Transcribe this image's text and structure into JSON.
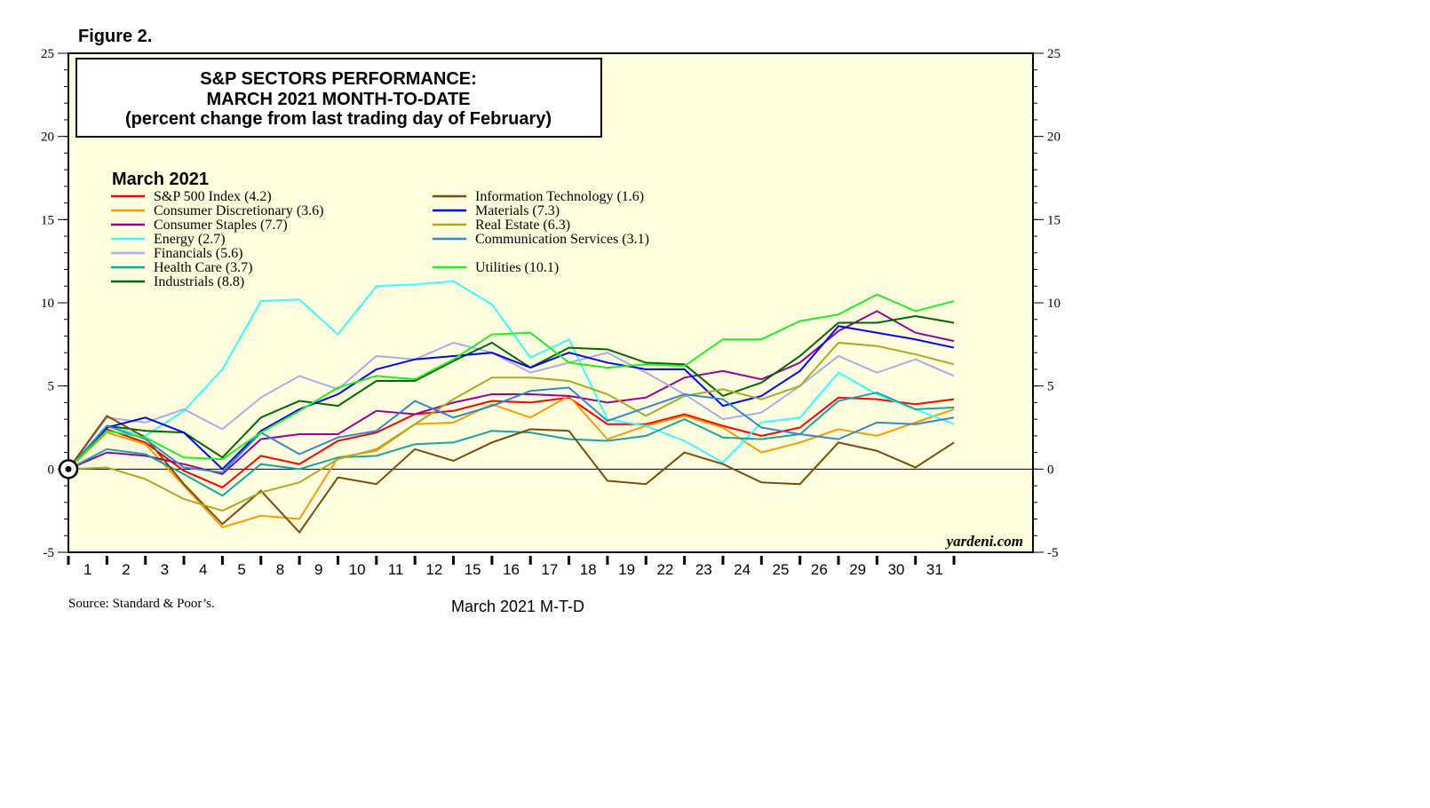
{
  "chart_data": {
    "type": "line",
    "figure_label": "Figure 2.",
    "title": [
      "S&P SECTORS PERFORMANCE:",
      "MARCH 2021 MONTH-TO-DATE",
      "(percent change from last trading day of February)"
    ],
    "legend_title": "March 2021",
    "watermark": "yardeni.com",
    "source": "Source: Standard & Poor’s.",
    "xlabel": "March 2021 M-T-D",
    "categories": [
      null,
      "1",
      "2",
      "3",
      "4",
      "5",
      "8",
      "9",
      "10",
      "11",
      "12",
      "15",
      "16",
      "17",
      "18",
      "19",
      "22",
      "23",
      "24",
      "25",
      "26",
      "29",
      "30",
      "31"
    ],
    "ylim": [
      -5,
      25
    ],
    "yticks": [
      -5,
      0,
      5,
      10,
      15,
      20,
      25
    ],
    "y2lim": [
      -5,
      25
    ],
    "y2ticks": [
      -5,
      0,
      5,
      10,
      15,
      20,
      25
    ],
    "series": [
      {
        "name": "S&P 500 Index (4.2)",
        "color": "#ff0000",
        "values": [
          0,
          2.4,
          1.6,
          -0.1,
          -1.1,
          0.8,
          0.3,
          1.7,
          2.2,
          3.3,
          3.5,
          4.1,
          4.0,
          4.3,
          2.7,
          2.7,
          3.3,
          2.6,
          2.0,
          2.5,
          4.3,
          4.2,
          3.9,
          4.2
        ]
      },
      {
        "name": "Consumer Discretionary (3.6)",
        "color": "#ff9900",
        "values": [
          0,
          2.2,
          1.5,
          -1.0,
          -3.5,
          -2.8,
          -3.0,
          0.7,
          1.1,
          2.7,
          2.8,
          3.9,
          3.1,
          4.4,
          1.8,
          2.6,
          3.2,
          2.5,
          1.0,
          1.6,
          2.4,
          2.0,
          2.8,
          3.6
        ]
      },
      {
        "name": "Consumer Staples (7.7)",
        "color": "#990099",
        "values": [
          0,
          1.0,
          0.8,
          0.3,
          -0.3,
          1.8,
          2.1,
          2.1,
          3.5,
          3.3,
          4.0,
          4.5,
          4.5,
          4.4,
          4.0,
          4.3,
          5.5,
          5.9,
          5.4,
          6.4,
          8.3,
          9.5,
          8.2,
          7.7
        ]
      },
      {
        "name": "Energy (2.7)",
        "color": "#33ffff",
        "values": [
          0,
          2.6,
          2.0,
          3.5,
          6.0,
          10.1,
          10.2,
          8.1,
          11.0,
          11.1,
          11.3,
          9.9,
          6.7,
          7.8,
          3.0,
          2.6,
          1.7,
          0.4,
          2.8,
          3.1,
          5.8,
          4.5,
          3.6,
          2.7
        ]
      },
      {
        "name": "Financials (5.6)",
        "color": "#aaaaee",
        "values": [
          0,
          3.1,
          2.8,
          3.6,
          2.4,
          4.3,
          5.6,
          4.8,
          6.8,
          6.6,
          7.6,
          7.0,
          5.8,
          6.4,
          7.0,
          5.8,
          4.5,
          3.0,
          3.4,
          5.0,
          6.8,
          5.8,
          6.6,
          5.6
        ]
      },
      {
        "name": "Health Care (3.7)",
        "color": "#1aa3a3",
        "values": [
          0,
          1.2,
          0.9,
          -0.3,
          -1.6,
          0.3,
          0.0,
          0.7,
          0.8,
          1.5,
          1.6,
          2.3,
          2.2,
          1.8,
          1.7,
          2.0,
          3.0,
          1.9,
          1.8,
          2.1,
          4.1,
          4.6,
          3.6,
          3.7
        ]
      },
      {
        "name": "Industrials (8.8)",
        "color": "#006600",
        "values": [
          0,
          2.6,
          2.3,
          2.2,
          0.7,
          3.1,
          4.1,
          3.8,
          5.3,
          5.3,
          6.5,
          7.6,
          6.1,
          7.3,
          7.2,
          6.4,
          6.3,
          4.4,
          5.2,
          6.8,
          8.8,
          8.8,
          9.2,
          8.8
        ]
      },
      {
        "name": "Information Technology (1.6)",
        "color": "#7a4a0a",
        "values": [
          0,
          3.2,
          1.9,
          -0.9,
          -3.3,
          -1.3,
          -3.8,
          -0.5,
          -0.9,
          1.2,
          0.5,
          1.6,
          2.4,
          2.3,
          -0.7,
          -0.9,
          1.0,
          0.3,
          -0.8,
          -0.9,
          1.6,
          1.1,
          0.1,
          1.6
        ]
      },
      {
        "name": "Materials (7.3)",
        "color": "#0000ff",
        "values": [
          0,
          2.5,
          3.1,
          2.2,
          0.0,
          2.3,
          3.6,
          4.5,
          6.0,
          6.6,
          6.8,
          7.0,
          6.1,
          7.0,
          6.4,
          6.0,
          6.0,
          3.8,
          4.4,
          5.9,
          8.6,
          8.2,
          7.8,
          7.3
        ]
      },
      {
        "name": "Real Estate (6.3)",
        "color": "#aaaa22",
        "values": [
          0,
          0.1,
          -0.6,
          -1.8,
          -2.5,
          -1.4,
          -0.8,
          0.6,
          1.2,
          2.7,
          4.2,
          5.5,
          5.5,
          5.3,
          4.5,
          3.2,
          4.4,
          4.8,
          4.2,
          5.0,
          7.6,
          7.4,
          6.9,
          6.3
        ]
      },
      {
        "name": "Communication Services (3.1)",
        "color": "#3388cc",
        "values": [
          0,
          2.6,
          1.8,
          0.1,
          -0.2,
          2.2,
          0.9,
          1.9,
          2.3,
          4.1,
          3.1,
          3.8,
          4.7,
          4.9,
          2.9,
          3.7,
          4.5,
          4.2,
          2.5,
          2.1,
          1.8,
          2.8,
          2.7,
          3.1
        ]
      },
      {
        "name": "Utilities (10.1)",
        "color": "#22ee22",
        "values": [
          0,
          2.3,
          1.9,
          0.7,
          0.6,
          2.2,
          3.5,
          4.9,
          5.6,
          5.4,
          6.6,
          8.1,
          8.2,
          6.4,
          6.1,
          6.3,
          6.2,
          7.8,
          7.8,
          8.9,
          9.3,
          10.5,
          9.5,
          10.1
        ]
      }
    ]
  }
}
